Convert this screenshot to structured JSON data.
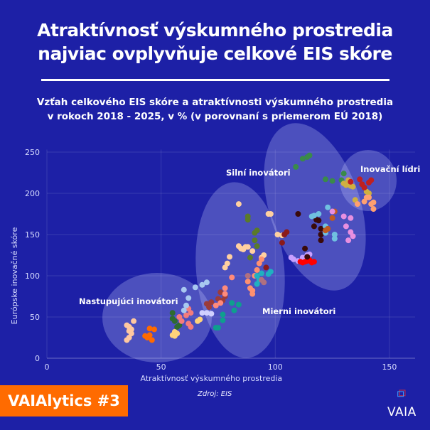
{
  "header": {
    "title_line1": "Atraktívnosť výskumného prostredia",
    "title_line2": "najviac ovplyvňuje celkové EIS skóre",
    "subtitle_line1": "Vzťah celkového EIS skóre a atraktívnosti výskumného prostredia",
    "subtitle_line2": "v rokoch 2018 - 2025, v % (v porovnaní s priemerom EÚ 2018)"
  },
  "footer": {
    "badge": "VAIAlytics #3",
    "source": "Zdroj: EIS",
    "logo_text": "VAIA"
  },
  "colors": {
    "background": "#1d20a6",
    "badge": "#ff6b00",
    "ellipse": "rgba(200,205,255,0.28)"
  },
  "chart_data": {
    "type": "scatter",
    "xlabel": "Atraktívnosť výskumného prostredia",
    "ylabel": "Európske inovačné skóre",
    "xlim": [
      0,
      160
    ],
    "ylim": [
      0,
      260
    ],
    "xticks": [
      0,
      50,
      100,
      150
    ],
    "yticks": [
      0,
      50,
      100,
      150,
      200,
      250
    ],
    "grid": true,
    "annotations": [
      "Nastupujúci inovátori",
      "Mierni inovátori",
      "Silní inovátori",
      "Inovační lídri"
    ],
    "series": [
      {
        "color": "#ffc8a0",
        "points": [
          [
            35,
            40
          ],
          [
            36,
            38
          ],
          [
            37,
            35
          ],
          [
            37,
            30
          ],
          [
            36,
            25
          ],
          [
            35,
            22
          ],
          [
            38,
            45
          ],
          [
            36,
            33
          ]
        ]
      },
      {
        "color": "#ff6a00",
        "points": [
          [
            43,
            27
          ],
          [
            44,
            25
          ],
          [
            45,
            28
          ],
          [
            46,
            22
          ],
          [
            45,
            36
          ],
          [
            47,
            35
          ],
          [
            44,
            26
          ]
        ]
      },
      {
        "color": "#ffd37a",
        "points": [
          [
            55,
            28
          ],
          [
            56,
            32
          ],
          [
            56,
            27
          ],
          [
            57,
            30
          ],
          [
            66,
            45
          ],
          [
            67,
            47
          ]
        ]
      },
      {
        "color": "#2e6b2e",
        "points": [
          [
            55,
            55
          ],
          [
            55,
            48
          ],
          [
            56,
            45
          ],
          [
            57,
            38
          ],
          [
            58,
            40
          ]
        ]
      },
      {
        "color": "#f47c7c",
        "points": [
          [
            58,
            50
          ],
          [
            59,
            45
          ],
          [
            62,
            60
          ],
          [
            63,
            55
          ],
          [
            62,
            42
          ],
          [
            63,
            38
          ],
          [
            61,
            52
          ]
        ]
      },
      {
        "color": "#a8c8f0",
        "points": [
          [
            60,
            83
          ],
          [
            62,
            73
          ],
          [
            61,
            64
          ],
          [
            60,
            58
          ],
          [
            65,
            86
          ],
          [
            68,
            89
          ],
          [
            70,
            92
          ]
        ]
      },
      {
        "color": "#d0d0ff",
        "points": [
          [
            68,
            55
          ],
          [
            70,
            55
          ],
          [
            72,
            54
          ]
        ]
      },
      {
        "color": "#9b3b3b",
        "points": [
          [
            70,
            66
          ],
          [
            71,
            62
          ],
          [
            72,
            68
          ],
          [
            75,
            72
          ],
          [
            76,
            80
          ],
          [
            78,
            75
          ],
          [
            77,
            70
          ]
        ]
      },
      {
        "color": "#ff8a7a",
        "points": [
          [
            74,
            64
          ],
          [
            76,
            67
          ],
          [
            78,
            85
          ],
          [
            78,
            78
          ],
          [
            81,
            98
          ]
        ]
      },
      {
        "color": "#0e9e8e",
        "points": [
          [
            74,
            37
          ],
          [
            75,
            37
          ],
          [
            77,
            53
          ],
          [
            77,
            46
          ],
          [
            81,
            67
          ],
          [
            82,
            58
          ],
          [
            84,
            65
          ]
        ]
      },
      {
        "color": "#ffd0a0",
        "points": [
          [
            78,
            110
          ],
          [
            79,
            115
          ],
          [
            80,
            123
          ],
          [
            84,
            187
          ],
          [
            84,
            136
          ],
          [
            85,
            133
          ],
          [
            86,
            132
          ],
          [
            87,
            135
          ],
          [
            90,
            130
          ],
          [
            88,
            135
          ],
          [
            94,
            122
          ],
          [
            95,
            125
          ],
          [
            97,
            175
          ],
          [
            98,
            175
          ],
          [
            101,
            150
          ],
          [
            103,
            149
          ]
        ]
      },
      {
        "color": "#5a7a2a",
        "points": [
          [
            88,
            172
          ],
          [
            88,
            168
          ],
          [
            91,
            152
          ],
          [
            92,
            155
          ],
          [
            91,
            143
          ],
          [
            92,
            136
          ],
          [
            89,
            122
          ]
        ]
      },
      {
        "color": "#ff9070",
        "points": [
          [
            88,
            93
          ],
          [
            89,
            85
          ],
          [
            90,
            82
          ],
          [
            90,
            78
          ],
          [
            91,
            100
          ],
          [
            92,
            107
          ],
          [
            93,
            115
          ],
          [
            94,
            120
          ]
        ]
      },
      {
        "color": "#20b0c0",
        "points": [
          [
            92,
            100
          ],
          [
            93,
            95
          ],
          [
            94,
            103
          ],
          [
            97,
            102
          ],
          [
            98,
            105
          ],
          [
            92,
            90
          ]
        ]
      },
      {
        "color": "#b07080",
        "points": [
          [
            88,
            100
          ],
          [
            94,
            95
          ],
          [
            95,
            92
          ]
        ]
      },
      {
        "color": "#8b1a1a",
        "points": [
          [
            96,
            110
          ],
          [
            103,
            140
          ],
          [
            104,
            150
          ],
          [
            105,
            153
          ]
        ]
      },
      {
        "color": "#c8a0ff",
        "points": [
          [
            107,
            122
          ],
          [
            108,
            120
          ],
          [
            110,
            118
          ],
          [
            112,
            122
          ],
          [
            114,
            125
          ],
          [
            115,
            126
          ]
        ]
      },
      {
        "color": "#ff0000",
        "points": [
          [
            111,
            117
          ],
          [
            112,
            116
          ],
          [
            113,
            117
          ],
          [
            114,
            118
          ],
          [
            115,
            119
          ],
          [
            116,
            116
          ],
          [
            117,
            117
          ]
        ]
      },
      {
        "color": "#3a0a0a",
        "points": [
          [
            113,
            133
          ],
          [
            114,
            123
          ],
          [
            117,
            160
          ],
          [
            118,
            168
          ],
          [
            119,
            167
          ],
          [
            120,
            157
          ],
          [
            120,
            150
          ],
          [
            120,
            143
          ],
          [
            110,
            175
          ]
        ]
      },
      {
        "color": "#70c0e0",
        "points": [
          [
            116,
            172
          ],
          [
            117,
            173
          ],
          [
            119,
            175
          ],
          [
            122,
            160
          ],
          [
            122,
            152
          ],
          [
            126,
            145
          ],
          [
            126,
            150
          ],
          [
            123,
            183
          ]
        ]
      },
      {
        "color": "#c05a20",
        "points": [
          [
            122,
            155
          ],
          [
            123,
            157
          ],
          [
            125,
            170
          ],
          [
            126,
            178
          ]
        ]
      },
      {
        "color": "#e890e0",
        "points": [
          [
            125,
            178
          ],
          [
            130,
            172
          ],
          [
            133,
            170
          ],
          [
            131,
            160
          ],
          [
            133,
            153
          ],
          [
            134,
            148
          ],
          [
            132,
            143
          ]
        ]
      },
      {
        "color": "#3a8a4a",
        "points": [
          [
            109,
            232
          ],
          [
            112,
            242
          ],
          [
            114,
            244
          ],
          [
            115,
            246
          ],
          [
            122,
            217
          ],
          [
            125,
            215
          ],
          [
            129,
            216
          ],
          [
            130,
            224
          ]
        ]
      },
      {
        "color": "#d0b040",
        "points": [
          [
            130,
            212
          ],
          [
            132,
            216
          ],
          [
            131,
            210
          ],
          [
            133,
            209
          ],
          [
            134,
            208
          ],
          [
            135,
            192
          ],
          [
            140,
            202
          ],
          [
            141,
            200
          ]
        ]
      },
      {
        "color": "#c02020",
        "points": [
          [
            133,
            214
          ],
          [
            137,
            217
          ],
          [
            138,
            211
          ],
          [
            139,
            207
          ],
          [
            141,
            213
          ],
          [
            142,
            216
          ]
        ]
      },
      {
        "color": "#ffa070",
        "points": [
          [
            136,
            187
          ],
          [
            139,
            190
          ],
          [
            140,
            195
          ],
          [
            141,
            195
          ],
          [
            142,
            187
          ],
          [
            143,
            189
          ],
          [
            143,
            181
          ]
        ]
      }
    ]
  }
}
